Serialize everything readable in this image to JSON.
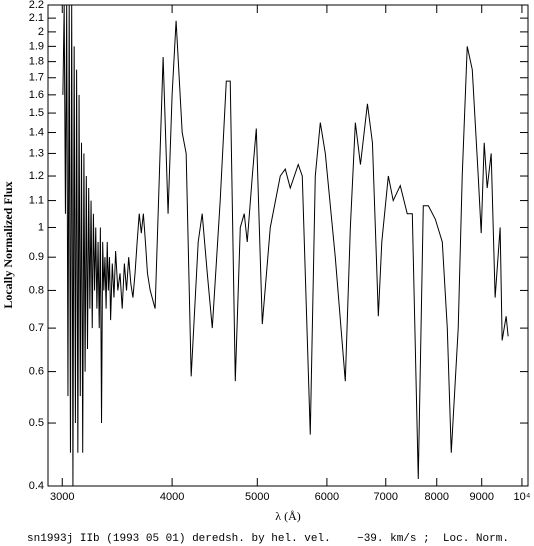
{
  "chart_data": {
    "type": "line",
    "caption": "sn1993j IIb (1993 05 01) deredsh. by hel. vel.    −39. km/s ;  Loc. Norm.",
    "xlabel": "λ (Å)",
    "ylabel": "Locally Normalized Flux",
    "xlog": true,
    "ylog": true,
    "xlim": [
      2890,
      10160
    ],
    "ylim": [
      0.4,
      2.2
    ],
    "xticks": [
      3000,
      4000,
      5000,
      6000,
      7000,
      8000,
      9000,
      {
        "value": 10000,
        "label": "10⁴"
      }
    ],
    "yticks": [
      0.4,
      0.5,
      0.6,
      0.7,
      0.8,
      0.9,
      1,
      1.1,
      1.2,
      1.3,
      1.4,
      1.5,
      1.6,
      1.7,
      1.8,
      1.9,
      2,
      2.1,
      2.2
    ],
    "series": [
      {
        "color": "#000000",
        "x": [
          3005,
          3015,
          3025,
          3035,
          3045,
          3055,
          3065,
          3075,
          3085,
          3095,
          3105,
          3115,
          3125,
          3135,
          3145,
          3155,
          3165,
          3175,
          3185,
          3195,
          3205,
          3215,
          3225,
          3235,
          3245,
          3255,
          3265,
          3275,
          3285,
          3295,
          3305,
          3315,
          3325,
          3335,
          3345,
          3355,
          3365,
          3375,
          3385,
          3395,
          3405,
          3420,
          3435,
          3450,
          3470,
          3490,
          3510,
          3530,
          3550,
          3570,
          3590,
          3610,
          3630,
          3650,
          3670,
          3690,
          3710,
          3730,
          3750,
          3777,
          3826,
          3907,
          3958,
          4000,
          4042,
          4107,
          4150,
          4205,
          4283,
          4328,
          4386,
          4444,
          4537,
          4610,
          4658,
          4720,
          4782,
          4832,
          4870,
          4935,
          4987,
          5066,
          5173,
          5310,
          5380,
          5451,
          5566,
          5625,
          5744,
          5820,
          5897,
          5975,
          6133,
          6296,
          6380,
          6464,
          6551,
          6672,
          6760,
          6830,
          6865,
          6928,
          7047,
          7138,
          7271,
          7405,
          7504,
          7622,
          7723,
          7826,
          7970,
          8117,
          8224,
          8310,
          8463,
          8552,
          8665,
          8780,
          8918,
          8988,
          9059,
          9130,
          9226,
          9322,
          9445,
          9495,
          9595,
          9645
        ],
        "values": [
          1.6,
          2.2,
          1.05,
          2.2,
          0.55,
          2.2,
          0.45,
          2.2,
          0.4,
          1.9,
          0.5,
          1.75,
          0.45,
          1.6,
          0.55,
          1.35,
          0.45,
          1.3,
          0.6,
          1.2,
          0.65,
          1.15,
          0.75,
          1.1,
          0.7,
          1.05,
          0.8,
          1.0,
          0.75,
          0.95,
          0.7,
          1.0,
          0.5,
          0.95,
          0.8,
          0.9,
          0.75,
          0.95,
          0.8,
          0.9,
          0.72,
          0.88,
          0.78,
          0.92,
          0.8,
          0.85,
          0.75,
          0.88,
          0.8,
          0.9,
          0.82,
          0.78,
          0.85,
          0.95,
          1.05,
          0.98,
          1.05,
          0.95,
          0.85,
          0.8,
          0.75,
          1.83,
          1.05,
          1.6,
          2.08,
          1.4,
          1.3,
          0.59,
          0.95,
          1.05,
          0.85,
          0.7,
          1.1,
          1.68,
          1.68,
          0.58,
          1.0,
          1.05,
          0.95,
          1.2,
          1.42,
          0.71,
          1.0,
          1.2,
          1.23,
          1.15,
          1.25,
          1.2,
          0.48,
          1.2,
          1.45,
          1.3,
          0.9,
          0.58,
          1.0,
          1.45,
          1.25,
          1.55,
          1.35,
          0.9,
          0.73,
          0.95,
          1.2,
          1.1,
          1.16,
          1.05,
          1.05,
          0.41,
          1.08,
          1.08,
          1.03,
          0.95,
          0.7,
          0.45,
          0.7,
          1.2,
          1.9,
          1.75,
          1.2,
          0.98,
          1.35,
          1.15,
          1.3,
          0.78,
          1.0,
          0.67,
          0.73,
          0.68
        ]
      }
    ]
  }
}
